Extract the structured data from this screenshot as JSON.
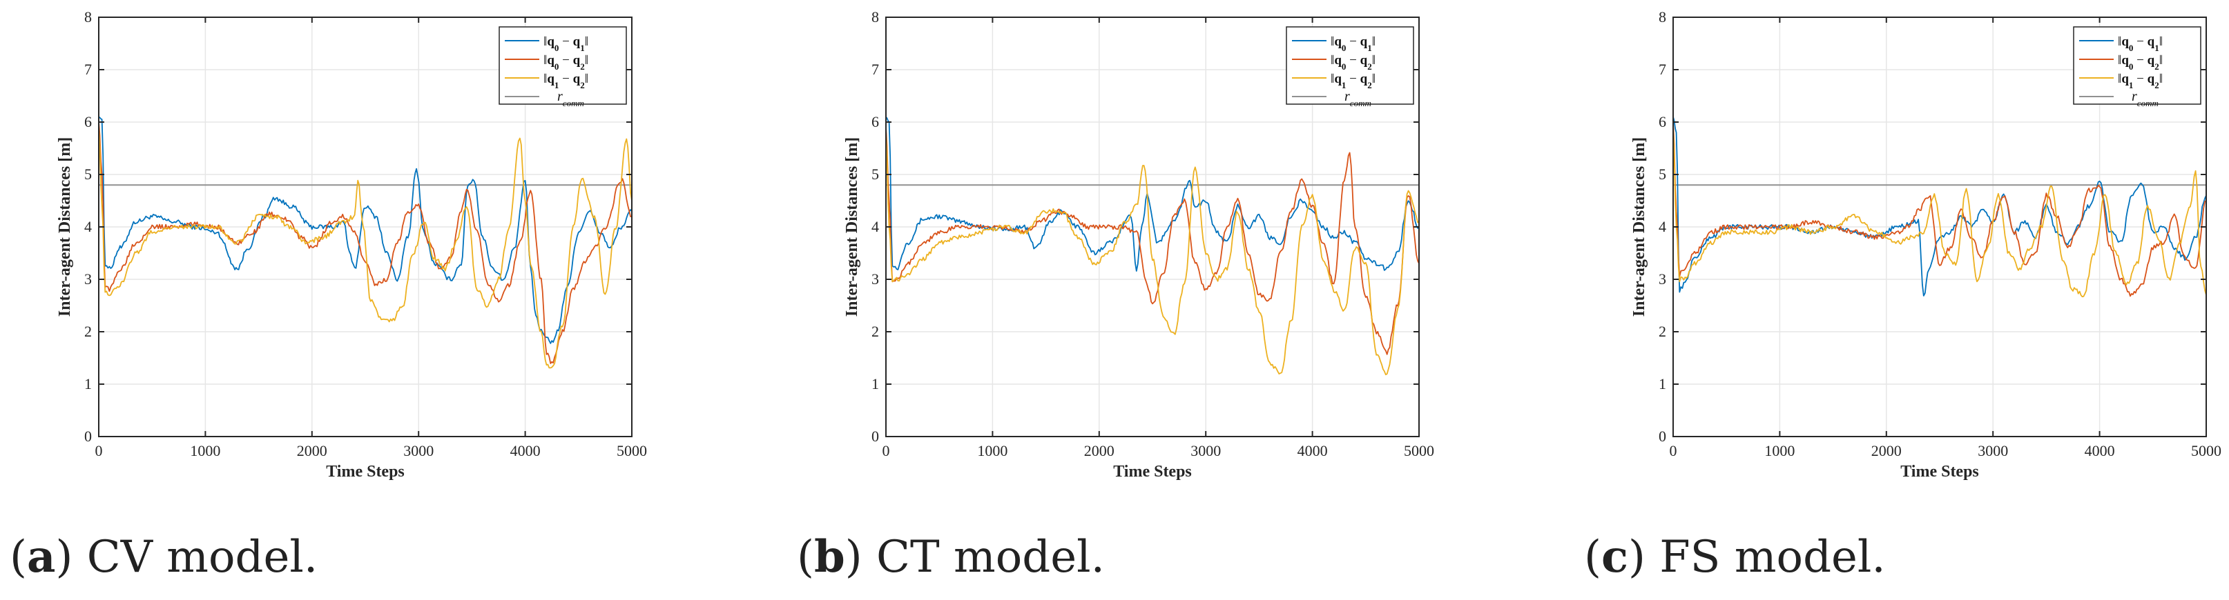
{
  "chart_data": [
    {
      "type": "line",
      "panel_label": "a",
      "caption": "CV model.",
      "xlabel": "Time Steps",
      "ylabel": "Inter-agent Distances [m]",
      "xlim": [
        0,
        5000
      ],
      "ylim": [
        0,
        8
      ],
      "xticks": [
        "0",
        "1000",
        "2000",
        "3000",
        "4000",
        "5000"
      ],
      "yticks": [
        "0",
        "1",
        "2",
        "3",
        "4",
        "5",
        "6",
        "7",
        "8"
      ],
      "grid": true,
      "legend_position": "top-right",
      "threshold": {
        "name": "r_comm",
        "value": 4.8,
        "color": "#909090"
      },
      "series": [
        {
          "name": "||q0 − q1||",
          "color": "#0072BD",
          "x": [
            0,
            30,
            60,
            100,
            200,
            350,
            500,
            700,
            900,
            1100,
            1300,
            1400,
            1550,
            1650,
            1800,
            2000,
            2200,
            2300,
            2350,
            2400,
            2500,
            2600,
            2700,
            2800,
            2900,
            2980,
            3050,
            3150,
            3300,
            3400,
            3460,
            3520,
            3600,
            3700,
            3800,
            3900,
            4000,
            4050,
            4100,
            4150,
            4250,
            4300,
            4400,
            4500,
            4600,
            4700,
            4800,
            4900,
            5000
          ],
          "y": [
            6.1,
            6.05,
            3.3,
            3.2,
            3.6,
            4.1,
            4.2,
            4.1,
            4.0,
            3.9,
            3.2,
            3.6,
            4.2,
            4.55,
            4.4,
            4.0,
            4.0,
            4.1,
            3.5,
            3.2,
            4.4,
            4.2,
            3.5,
            3.0,
            3.8,
            5.1,
            3.9,
            3.3,
            3.0,
            3.3,
            4.8,
            4.9,
            3.8,
            3.2,
            3.0,
            3.6,
            4.9,
            3.2,
            2.3,
            2.0,
            1.8,
            2.0,
            2.9,
            3.9,
            4.3,
            3.9,
            3.6,
            4.0,
            4.3
          ]
        },
        {
          "name": "||q0 − q2||",
          "color": "#D95319",
          "x": [
            0,
            30,
            60,
            100,
            200,
            350,
            500,
            700,
            900,
            1100,
            1300,
            1450,
            1600,
            1750,
            1900,
            2000,
            2200,
            2300,
            2400,
            2500,
            2600,
            2700,
            2800,
            2900,
            3000,
            3100,
            3200,
            3300,
            3400,
            3450,
            3550,
            3650,
            3750,
            3850,
            3950,
            4050,
            4150,
            4200,
            4250,
            4350,
            4450,
            4550,
            4650,
            4750,
            4900,
            5000
          ],
          "y": [
            6.0,
            5.0,
            2.9,
            2.8,
            3.2,
            3.7,
            4.0,
            4.0,
            4.05,
            4.0,
            3.7,
            3.9,
            4.25,
            4.15,
            3.8,
            3.6,
            4.1,
            4.2,
            3.9,
            3.3,
            2.9,
            3.0,
            3.7,
            4.3,
            4.4,
            3.7,
            3.2,
            3.4,
            4.3,
            4.7,
            3.9,
            2.9,
            2.6,
            2.9,
            3.7,
            4.7,
            3.0,
            1.6,
            1.4,
            2.0,
            2.8,
            3.3,
            3.6,
            4.0,
            4.9,
            4.2
          ]
        },
        {
          "name": "||q1 − q2||",
          "color": "#EDB120",
          "x": [
            0,
            30,
            60,
            100,
            200,
            350,
            500,
            700,
            900,
            1100,
            1300,
            1500,
            1650,
            1800,
            1950,
            2100,
            2300,
            2400,
            2430,
            2480,
            2550,
            2650,
            2750,
            2850,
            2950,
            3050,
            3150,
            3250,
            3350,
            3450,
            3550,
            3650,
            3750,
            3850,
            3950,
            4000,
            4050,
            4150,
            4200,
            4250,
            4350,
            4450,
            4530,
            4650,
            4750,
            4850,
            4950,
            5000
          ],
          "y": [
            5.9,
            4.4,
            2.8,
            2.7,
            2.9,
            3.5,
            3.9,
            4.0,
            4.0,
            4.0,
            3.7,
            4.2,
            4.2,
            4.0,
            3.7,
            3.8,
            4.1,
            4.2,
            4.9,
            4.0,
            2.6,
            2.25,
            2.2,
            2.5,
            3.5,
            4.1,
            3.4,
            3.2,
            3.7,
            4.4,
            2.8,
            2.5,
            3.0,
            4.0,
            5.7,
            4.5,
            3.3,
            2.0,
            1.4,
            1.3,
            2.1,
            4.0,
            4.9,
            4.2,
            2.7,
            4.0,
            5.7,
            4.5
          ]
        }
      ]
    },
    {
      "type": "line",
      "panel_label": "b",
      "caption": "CT model.",
      "xlabel": "Time Steps",
      "ylabel": "Inter-agent Distances [m]",
      "xlim": [
        0,
        5000
      ],
      "ylim": [
        0,
        8
      ],
      "xticks": [
        "0",
        "1000",
        "2000",
        "3000",
        "4000",
        "5000"
      ],
      "yticks": [
        "0",
        "1",
        "2",
        "3",
        "4",
        "5",
        "6",
        "7",
        "8"
      ],
      "grid": true,
      "legend_position": "top-right",
      "threshold": {
        "name": "r_comm",
        "value": 4.8,
        "color": "#909090"
      },
      "series": [
        {
          "name": "||q0 − q1||",
          "color": "#0072BD",
          "x": [
            0,
            30,
            60,
            100,
            200,
            350,
            500,
            700,
            900,
            1100,
            1300,
            1400,
            1550,
            1650,
            1800,
            1950,
            2100,
            2300,
            2350,
            2400,
            2450,
            2550,
            2700,
            2850,
            2900,
            3000,
            3100,
            3200,
            3300,
            3400,
            3500,
            3600,
            3700,
            3800,
            3900,
            4000,
            4100,
            4200,
            4300,
            4400,
            4500,
            4600,
            4700,
            4800,
            4900,
            5000
          ],
          "y": [
            6.1,
            6.0,
            3.3,
            3.2,
            3.7,
            4.15,
            4.2,
            4.1,
            4.0,
            3.95,
            4.0,
            3.6,
            4.1,
            4.3,
            4.0,
            3.5,
            3.7,
            4.2,
            3.2,
            4.0,
            4.6,
            3.7,
            4.1,
            4.85,
            4.4,
            4.5,
            3.9,
            3.7,
            4.4,
            4.0,
            4.2,
            3.8,
            3.7,
            4.2,
            4.5,
            4.3,
            4.0,
            3.8,
            3.9,
            3.7,
            3.4,
            3.3,
            3.2,
            3.5,
            4.5,
            4.0
          ]
        },
        {
          "name": "||q0 − q2||",
          "color": "#D95319",
          "x": [
            0,
            30,
            60,
            100,
            200,
            350,
            500,
            700,
            900,
            1100,
            1300,
            1450,
            1600,
            1750,
            1900,
            2050,
            2200,
            2350,
            2450,
            2500,
            2600,
            2700,
            2800,
            2900,
            3000,
            3100,
            3200,
            3300,
            3400,
            3500,
            3600,
            3700,
            3800,
            3900,
            4000,
            4100,
            4200,
            4300,
            4350,
            4400,
            4500,
            4600,
            4700,
            4800,
            4900,
            5000
          ],
          "y": [
            5.9,
            4.5,
            3.0,
            3.0,
            3.3,
            3.7,
            3.9,
            4.0,
            4.0,
            4.0,
            3.9,
            4.1,
            4.3,
            4.2,
            4.0,
            4.0,
            4.0,
            3.9,
            2.9,
            2.5,
            3.1,
            4.2,
            4.5,
            3.3,
            2.8,
            3.1,
            4.0,
            4.5,
            3.5,
            2.7,
            2.6,
            3.5,
            4.3,
            4.9,
            4.4,
            3.7,
            2.9,
            4.9,
            5.4,
            4.0,
            2.7,
            2.0,
            1.6,
            2.5,
            4.6,
            3.3
          ]
        },
        {
          "name": "||q1 − q2||",
          "color": "#EDB120",
          "x": [
            0,
            30,
            60,
            100,
            200,
            350,
            500,
            700,
            900,
            1100,
            1300,
            1500,
            1650,
            1800,
            1950,
            2100,
            2250,
            2350,
            2420,
            2500,
            2600,
            2700,
            2800,
            2900,
            3000,
            3100,
            3200,
            3300,
            3400,
            3500,
            3600,
            3700,
            3800,
            3900,
            4000,
            4100,
            4200,
            4300,
            4400,
            4500,
            4600,
            4700,
            4800,
            4900,
            5000
          ],
          "y": [
            5.8,
            4.0,
            3.0,
            3.0,
            3.1,
            3.4,
            3.7,
            3.8,
            3.9,
            4.0,
            3.9,
            4.3,
            4.3,
            3.8,
            3.3,
            3.5,
            4.1,
            4.4,
            5.2,
            3.4,
            2.3,
            1.95,
            2.9,
            5.1,
            3.5,
            3.0,
            3.2,
            4.3,
            3.2,
            2.4,
            1.4,
            1.2,
            2.2,
            4.0,
            4.6,
            3.4,
            2.8,
            2.4,
            3.6,
            3.3,
            1.6,
            1.2,
            2.4,
            4.7,
            4.1
          ]
        }
      ]
    },
    {
      "type": "line",
      "panel_label": "c",
      "caption": "FS model.",
      "xlabel": "Time Steps",
      "ylabel": "Inter-agent Distances [m]",
      "xlim": [
        0,
        5000
      ],
      "ylim": [
        0,
        8
      ],
      "xticks": [
        "0",
        "1000",
        "2000",
        "3000",
        "4000",
        "5000"
      ],
      "yticks": [
        "0",
        "1",
        "2",
        "3",
        "4",
        "5",
        "6",
        "7",
        "8"
      ],
      "grid": true,
      "legend_position": "top-right",
      "threshold": {
        "name": "r_comm",
        "value": 4.8,
        "color": "#909090"
      },
      "series": [
        {
          "name": "||q0 − q1||",
          "color": "#0072BD",
          "x": [
            0,
            30,
            60,
            100,
            200,
            350,
            500,
            700,
            900,
            1100,
            1300,
            1500,
            1700,
            1900,
            2100,
            2300,
            2350,
            2400,
            2500,
            2600,
            2700,
            2800,
            2900,
            3000,
            3100,
            3200,
            3300,
            3400,
            3500,
            3600,
            3700,
            3800,
            3900,
            4000,
            4100,
            4200,
            4300,
            4400,
            4500,
            4600,
            4700,
            4800,
            4900,
            5000
          ],
          "y": [
            6.1,
            5.8,
            2.8,
            2.9,
            3.4,
            3.8,
            4.0,
            4.0,
            4.0,
            4.0,
            3.9,
            4.0,
            3.9,
            3.8,
            4.0,
            4.1,
            2.7,
            3.2,
            3.8,
            3.9,
            4.2,
            4.0,
            4.3,
            4.1,
            4.6,
            3.9,
            4.1,
            3.8,
            4.4,
            3.9,
            3.7,
            4.0,
            4.4,
            4.85,
            3.9,
            3.7,
            4.6,
            4.8,
            3.9,
            4.0,
            3.6,
            3.4,
            3.8,
            4.6
          ]
        },
        {
          "name": "||q0 − q2||",
          "color": "#D95319",
          "x": [
            0,
            30,
            60,
            100,
            200,
            350,
            500,
            700,
            900,
            1100,
            1300,
            1500,
            1700,
            1900,
            2100,
            2200,
            2300,
            2400,
            2500,
            2600,
            2700,
            2800,
            2900,
            3000,
            3100,
            3200,
            3300,
            3400,
            3500,
            3600,
            3700,
            3800,
            3900,
            4000,
            4100,
            4200,
            4300,
            4400,
            4500,
            4600,
            4700,
            4800,
            4900,
            5000
          ],
          "y": [
            6.0,
            4.3,
            3.1,
            3.2,
            3.5,
            3.9,
            4.0,
            4.0,
            4.0,
            4.0,
            4.1,
            4.0,
            3.9,
            3.8,
            3.9,
            4.0,
            4.3,
            4.6,
            3.3,
            3.6,
            4.3,
            3.8,
            3.4,
            4.1,
            4.6,
            3.9,
            3.3,
            3.5,
            4.6,
            4.2,
            3.6,
            4.0,
            4.7,
            4.8,
            3.6,
            3.0,
            2.7,
            2.9,
            3.6,
            3.7,
            4.2,
            3.4,
            3.2,
            4.5
          ]
        },
        {
          "name": "||q1 − q2||",
          "color": "#EDB120",
          "x": [
            0,
            30,
            60,
            100,
            200,
            350,
            500,
            700,
            900,
            1100,
            1300,
            1500,
            1700,
            1900,
            2100,
            2250,
            2350,
            2450,
            2550,
            2650,
            2750,
            2850,
            2950,
            3050,
            3150,
            3250,
            3350,
            3450,
            3550,
            3650,
            3750,
            3850,
            3950,
            4050,
            4150,
            4250,
            4350,
            4450,
            4550,
            4650,
            4750,
            4850,
            4900,
            4950,
            5000
          ],
          "y": [
            5.9,
            4.0,
            3.0,
            3.0,
            3.3,
            3.7,
            3.9,
            3.9,
            3.9,
            4.0,
            3.9,
            4.0,
            4.2,
            3.9,
            3.7,
            3.8,
            3.9,
            4.6,
            3.5,
            3.3,
            4.7,
            3.0,
            3.6,
            4.6,
            3.5,
            3.2,
            3.6,
            4.0,
            4.8,
            3.4,
            2.8,
            2.7,
            3.5,
            4.6,
            3.5,
            2.9,
            3.3,
            4.4,
            3.8,
            3.0,
            3.7,
            4.4,
            5.05,
            3.2,
            2.7
          ]
        }
      ]
    }
  ]
}
